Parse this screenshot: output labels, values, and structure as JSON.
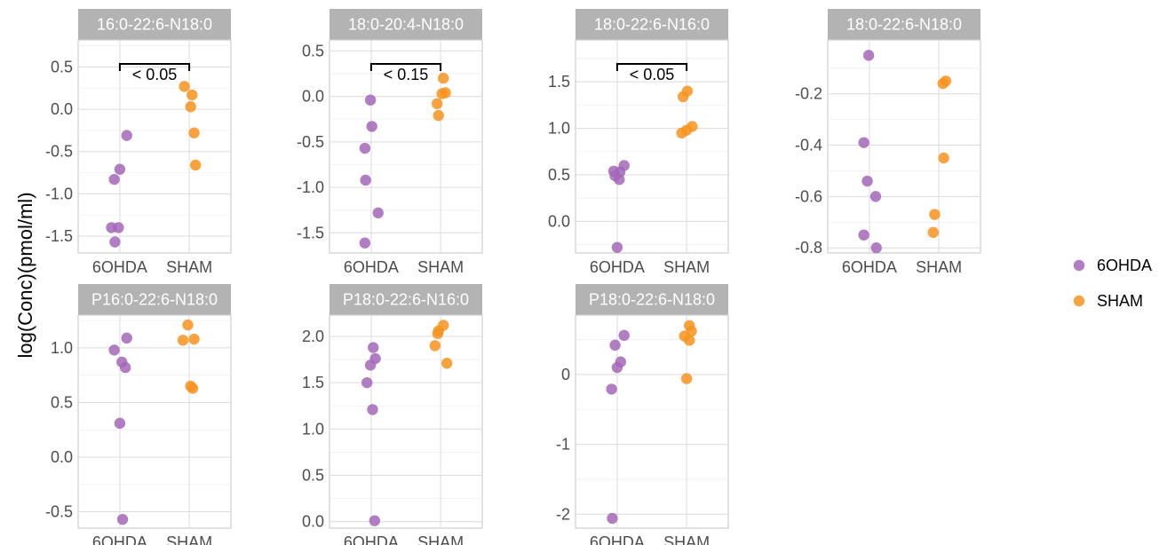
{
  "chart_data": {
    "type": "scatter",
    "ylabel": "log(Conc)(pmol/ml)",
    "legend_position": "right",
    "legend": [
      {
        "name": "6OHDA",
        "color": "#a366b8"
      },
      {
        "name": "SHAM",
        "color": "#f7931e"
      }
    ],
    "categories": [
      "6OHDA",
      "SHAM"
    ],
    "panels": [
      {
        "title": "16:0-22:6-N18:0",
        "ylim": [
          -1.7,
          0.82
        ],
        "yticks": [
          0.5,
          0.0,
          -0.5,
          -1.0,
          -1.5
        ],
        "ytick_labels": [
          "0.5",
          "0.0",
          "-0.5",
          "-1.0",
          "-1.5"
        ],
        "significance": "< 0.05",
        "points": [
          {
            "group": "6OHDA",
            "x": 1.1,
            "y": -0.31
          },
          {
            "group": "6OHDA",
            "x": 1.0,
            "y": -0.71
          },
          {
            "group": "6OHDA",
            "x": 0.92,
            "y": -0.83
          },
          {
            "group": "6OHDA",
            "x": 0.88,
            "y": -1.4
          },
          {
            "group": "6OHDA",
            "x": 0.98,
            "y": -1.4
          },
          {
            "group": "6OHDA",
            "x": 0.93,
            "y": -1.57
          },
          {
            "group": "SHAM",
            "x": 1.93,
            "y": 0.27
          },
          {
            "group": "SHAM",
            "x": 2.04,
            "y": 0.17
          },
          {
            "group": "SHAM",
            "x": 2.02,
            "y": 0.03
          },
          {
            "group": "SHAM",
            "x": 2.07,
            "y": -0.28
          },
          {
            "group": "SHAM",
            "x": 2.09,
            "y": -0.66
          }
        ]
      },
      {
        "title": "18:0-20:4-N18:0",
        "ylim": [
          -1.72,
          0.62
        ],
        "yticks": [
          0.5,
          0.0,
          -0.5,
          -1.0,
          -1.5
        ],
        "ytick_labels": [
          "0.5",
          "0.0",
          "-0.5",
          "-1.0",
          "-1.5"
        ],
        "significance": "< 0.15",
        "points": [
          {
            "group": "6OHDA",
            "x": 0.99,
            "y": -0.04
          },
          {
            "group": "6OHDA",
            "x": 1.01,
            "y": -0.33
          },
          {
            "group": "6OHDA",
            "x": 0.91,
            "y": -0.57
          },
          {
            "group": "6OHDA",
            "x": 0.92,
            "y": -0.92
          },
          {
            "group": "6OHDA",
            "x": 1.1,
            "y": -1.28
          },
          {
            "group": "6OHDA",
            "x": 0.91,
            "y": -1.61
          },
          {
            "group": "SHAM",
            "x": 2.04,
            "y": 0.2
          },
          {
            "group": "SHAM",
            "x": 2.07,
            "y": 0.04
          },
          {
            "group": "SHAM",
            "x": 2.02,
            "y": 0.03
          },
          {
            "group": "SHAM",
            "x": 1.95,
            "y": -0.08
          },
          {
            "group": "SHAM",
            "x": 1.97,
            "y": -0.21
          }
        ]
      },
      {
        "title": "18:0-22:6-N16:0",
        "ylim": [
          -0.34,
          1.95
        ],
        "yticks": [
          1.5,
          1.0,
          0.5,
          0.0
        ],
        "ytick_labels": [
          "1.5",
          "1.0",
          "0.5",
          "0.0"
        ],
        "significance": "< 0.05",
        "points": [
          {
            "group": "6OHDA",
            "x": 1.1,
            "y": 0.6
          },
          {
            "group": "6OHDA",
            "x": 0.95,
            "y": 0.54
          },
          {
            "group": "6OHDA",
            "x": 1.04,
            "y": 0.53
          },
          {
            "group": "6OHDA",
            "x": 0.97,
            "y": 0.49
          },
          {
            "group": "6OHDA",
            "x": 1.03,
            "y": 0.45
          },
          {
            "group": "6OHDA",
            "x": 1.0,
            "y": -0.28
          },
          {
            "group": "SHAM",
            "x": 2.01,
            "y": 1.4
          },
          {
            "group": "SHAM",
            "x": 1.95,
            "y": 1.34
          },
          {
            "group": "SHAM",
            "x": 2.08,
            "y": 1.02
          },
          {
            "group": "SHAM",
            "x": 2.0,
            "y": 0.98
          },
          {
            "group": "SHAM",
            "x": 1.93,
            "y": 0.95
          }
        ]
      },
      {
        "title": "18:0-22:6-N18:0",
        "ylim": [
          -0.82,
          0.01
        ],
        "yticks": [
          -0.2,
          -0.4,
          -0.6,
          -0.8
        ],
        "ytick_labels": [
          "-0.2",
          "-0.4",
          "-0.6",
          "-0.8"
        ],
        "significance": "",
        "points": [
          {
            "group": "6OHDA",
            "x": 0.99,
            "y": -0.05
          },
          {
            "group": "6OHDA",
            "x": 0.92,
            "y": -0.39
          },
          {
            "group": "6OHDA",
            "x": 0.97,
            "y": -0.54
          },
          {
            "group": "6OHDA",
            "x": 1.09,
            "y": -0.6
          },
          {
            "group": "6OHDA",
            "x": 0.92,
            "y": -0.75
          },
          {
            "group": "6OHDA",
            "x": 1.1,
            "y": -0.8
          },
          {
            "group": "SHAM",
            "x": 2.1,
            "y": -0.15
          },
          {
            "group": "SHAM",
            "x": 2.06,
            "y": -0.16
          },
          {
            "group": "SHAM",
            "x": 2.07,
            "y": -0.45
          },
          {
            "group": "SHAM",
            "x": 1.94,
            "y": -0.67
          },
          {
            "group": "SHAM",
            "x": 1.92,
            "y": -0.74
          }
        ]
      },
      {
        "title": "P16:0-22:6-N18:0",
        "ylim": [
          -0.65,
          1.3
        ],
        "yticks": [
          1.0,
          0.5,
          0.0,
          -0.5
        ],
        "ytick_labels": [
          "1.0",
          "0.5",
          "0.0",
          "-0.5"
        ],
        "significance": "",
        "points": [
          {
            "group": "6OHDA",
            "x": 1.1,
            "y": 1.09
          },
          {
            "group": "6OHDA",
            "x": 0.92,
            "y": 0.98
          },
          {
            "group": "6OHDA",
            "x": 1.03,
            "y": 0.87
          },
          {
            "group": "6OHDA",
            "x": 1.08,
            "y": 0.82
          },
          {
            "group": "6OHDA",
            "x": 1.0,
            "y": 0.31
          },
          {
            "group": "6OHDA",
            "x": 1.04,
            "y": -0.57
          },
          {
            "group": "SHAM",
            "x": 1.98,
            "y": 1.21
          },
          {
            "group": "SHAM",
            "x": 2.07,
            "y": 1.08
          },
          {
            "group": "SHAM",
            "x": 1.91,
            "y": 1.07
          },
          {
            "group": "SHAM",
            "x": 2.02,
            "y": 0.65
          },
          {
            "group": "SHAM",
            "x": 2.05,
            "y": 0.63
          }
        ]
      },
      {
        "title": "P18:0-22:6-N16:0",
        "ylim": [
          -0.07,
          2.23
        ],
        "yticks": [
          2.0,
          1.5,
          1.0,
          0.5,
          0.0
        ],
        "ytick_labels": [
          "2.0",
          "1.5",
          "1.0",
          "0.5",
          "0.0"
        ],
        "significance": "",
        "points": [
          {
            "group": "6OHDA",
            "x": 1.03,
            "y": 1.88
          },
          {
            "group": "6OHDA",
            "x": 1.06,
            "y": 1.76
          },
          {
            "group": "6OHDA",
            "x": 0.99,
            "y": 1.69
          },
          {
            "group": "6OHDA",
            "x": 0.94,
            "y": 1.5
          },
          {
            "group": "6OHDA",
            "x": 1.02,
            "y": 1.21
          },
          {
            "group": "6OHDA",
            "x": 1.05,
            "y": 0.01
          },
          {
            "group": "SHAM",
            "x": 2.04,
            "y": 2.12
          },
          {
            "group": "SHAM",
            "x": 1.97,
            "y": 2.06
          },
          {
            "group": "SHAM",
            "x": 1.96,
            "y": 2.03
          },
          {
            "group": "SHAM",
            "x": 1.92,
            "y": 1.9
          },
          {
            "group": "SHAM",
            "x": 2.09,
            "y": 1.71
          }
        ]
      },
      {
        "title": "P18:0-22:6-N18:0",
        "ylim": [
          -2.2,
          0.85
        ],
        "yticks": [
          0,
          -1,
          -2
        ],
        "ytick_labels": [
          "0",
          "-1",
          "-2"
        ],
        "significance": "",
        "points": [
          {
            "group": "6OHDA",
            "x": 1.1,
            "y": 0.56
          },
          {
            "group": "6OHDA",
            "x": 0.97,
            "y": 0.42
          },
          {
            "group": "6OHDA",
            "x": 1.05,
            "y": 0.18
          },
          {
            "group": "6OHDA",
            "x": 1.0,
            "y": 0.1
          },
          {
            "group": "6OHDA",
            "x": 0.92,
            "y": -0.21
          },
          {
            "group": "6OHDA",
            "x": 0.93,
            "y": -2.06
          },
          {
            "group": "SHAM",
            "x": 2.04,
            "y": 0.7
          },
          {
            "group": "SHAM",
            "x": 2.07,
            "y": 0.62
          },
          {
            "group": "SHAM",
            "x": 1.97,
            "y": 0.55
          },
          {
            "group": "SHAM",
            "x": 2.04,
            "y": 0.49
          },
          {
            "group": "SHAM",
            "x": 2.0,
            "y": -0.06
          }
        ]
      }
    ]
  }
}
